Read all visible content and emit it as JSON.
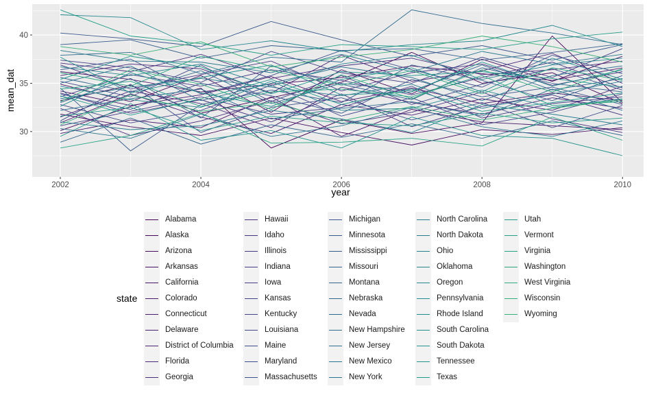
{
  "chart_data": {
    "type": "line",
    "xlabel": "year",
    "ylabel": "mean_dat",
    "xlim": [
      2001.6,
      2010.3
    ],
    "ylim": [
      25.3,
      43.2
    ],
    "x_ticks": [
      "2002",
      "2004",
      "2006",
      "2008",
      "2010"
    ],
    "y_ticks": [
      "30",
      "35",
      "40"
    ],
    "legend_title": "state",
    "legend_position": "bottom",
    "grid": true,
    "colormap": "viridis",
    "x": [
      2002,
      2003,
      2004,
      2005,
      2006,
      2007,
      2008,
      2009,
      2010
    ],
    "series": [
      {
        "name": "Alabama",
        "color": "#440154",
        "values": [
          33.2,
          34.8,
          31.9,
          33.5,
          35.1,
          38.2,
          35.0,
          36.1,
          32.9
        ]
      },
      {
        "name": "Alaska",
        "color": "#450559",
        "values": [
          30.1,
          32.6,
          34.5,
          28.3,
          31.2,
          29.8,
          30.9,
          39.9,
          33.0
        ]
      },
      {
        "name": "Arizona",
        "color": "#460a5d",
        "values": [
          34.9,
          33.1,
          35.8,
          32.0,
          36.4,
          33.9,
          37.5,
          35.2,
          37.8
        ]
      },
      {
        "name": "Arkansas",
        "color": "#470e61",
        "values": [
          31.8,
          30.5,
          29.6,
          31.4,
          29.9,
          28.6,
          30.2,
          29.7,
          30.4
        ]
      },
      {
        "name": "California",
        "color": "#471365",
        "values": [
          36.2,
          35.4,
          34.1,
          34.9,
          35.6,
          36.8,
          36.0,
          35.3,
          36.6
        ]
      },
      {
        "name": "Colorado",
        "color": "#481769",
        "values": [
          29.8,
          31.2,
          30.4,
          33.6,
          29.5,
          32.3,
          31.0,
          30.6,
          30.2
        ]
      },
      {
        "name": "Connecticut",
        "color": "#481b6d",
        "values": [
          34.2,
          32.7,
          33.8,
          35.7,
          33.1,
          34.5,
          32.9,
          34.0,
          33.2
        ]
      },
      {
        "name": "Delaware",
        "color": "#481f70",
        "values": [
          30.9,
          33.9,
          31.5,
          29.8,
          32.8,
          31.7,
          33.4,
          32.2,
          34.7
        ]
      },
      {
        "name": "District of Columbia",
        "color": "#482374",
        "values": [
          35.8,
          37.0,
          36.5,
          34.0,
          37.9,
          35.2,
          36.3,
          38.1,
          35.0
        ]
      },
      {
        "name": "Florida",
        "color": "#482878",
        "values": [
          31.5,
          34.2,
          32.9,
          30.4,
          34.6,
          33.0,
          31.8,
          33.5,
          32.4
        ]
      },
      {
        "name": "Georgia",
        "color": "#472c7a",
        "values": [
          37.1,
          36.2,
          38.0,
          35.5,
          36.8,
          37.6,
          35.9,
          36.4,
          37.3
        ]
      },
      {
        "name": "Hawaii",
        "color": "#472f7d",
        "values": [
          32.4,
          29.6,
          31.1,
          33.2,
          30.8,
          32.0,
          34.1,
          31.3,
          29.9
        ]
      },
      {
        "name": "Idaho",
        "color": "#46337f",
        "values": [
          34.0,
          31.9,
          33.3,
          31.0,
          33.9,
          30.5,
          32.6,
          33.8,
          31.7
        ]
      },
      {
        "name": "Illinois",
        "color": "#463781",
        "values": [
          36.9,
          34.4,
          35.9,
          37.3,
          34.2,
          36.1,
          37.0,
          34.8,
          36.2
        ]
      },
      {
        "name": "Indiana",
        "color": "#453b84",
        "values": [
          33.6,
          35.9,
          34.7,
          36.4,
          35.3,
          33.8,
          35.6,
          37.2,
          34.5
        ]
      },
      {
        "name": "Iowa",
        "color": "#443e85",
        "values": [
          30.6,
          32.1,
          33.6,
          31.8,
          32.5,
          34.7,
          31.4,
          32.9,
          33.6
        ]
      },
      {
        "name": "Kansas",
        "color": "#424186",
        "values": [
          37.4,
          36.6,
          35.1,
          38.3,
          36.1,
          35.0,
          37.7,
          35.6,
          38.6
        ]
      },
      {
        "name": "Kentucky",
        "color": "#414587",
        "values": [
          32.8,
          30.9,
          32.2,
          34.8,
          31.6,
          33.5,
          30.7,
          32.0,
          33.9
        ]
      },
      {
        "name": "Louisiana",
        "color": "#3f4889",
        "values": [
          35.2,
          33.6,
          36.9,
          33.1,
          35.8,
          32.8,
          34.9,
          36.5,
          34.3
        ]
      },
      {
        "name": "Maine",
        "color": "#3e4c8a",
        "values": [
          31.1,
          34.9,
          29.9,
          32.5,
          33.5,
          31.2,
          33.0,
          30.4,
          32.7
        ]
      },
      {
        "name": "Maryland",
        "color": "#3c4f8a",
        "values": [
          36.4,
          37.5,
          33.9,
          35.8,
          38.4,
          36.4,
          34.6,
          37.9,
          36.0
        ]
      },
      {
        "name": "Massachusetts",
        "color": "#3a538b",
        "values": [
          33.9,
          32.3,
          35.0,
          33.7,
          31.9,
          35.4,
          33.6,
          34.6,
          32.8
        ]
      },
      {
        "name": "Michigan",
        "color": "#38568b",
        "values": [
          40.2,
          39.6,
          38.8,
          41.4,
          39.5,
          37.8,
          38.9,
          37.4,
          39.0
        ]
      },
      {
        "name": "Minnesota",
        "color": "#365a8c",
        "values": [
          34.5,
          28.0,
          32.8,
          34.3,
          33.0,
          36.9,
          35.3,
          33.2,
          35.8
        ]
      },
      {
        "name": "Mississippi",
        "color": "#355d8c",
        "values": [
          39.0,
          39.5,
          37.6,
          38.9,
          38.4,
          38.6,
          37.4,
          38.2,
          39.1
        ]
      },
      {
        "name": "Missouri",
        "color": "#33608d",
        "values": [
          33.0,
          35.5,
          31.4,
          36.8,
          34.9,
          33.3,
          36.6,
          35.0,
          34.1
        ]
      },
      {
        "name": "Montana",
        "color": "#31648d",
        "values": [
          28.9,
          31.4,
          28.7,
          30.7,
          29.4,
          30.8,
          29.3,
          31.1,
          29.6
        ]
      },
      {
        "name": "Nebraska",
        "color": "#2f678d",
        "values": [
          35.6,
          34.1,
          36.3,
          32.9,
          35.0,
          34.2,
          36.9,
          34.3,
          35.5
        ]
      },
      {
        "name": "Nevada",
        "color": "#2e6a8d",
        "values": [
          37.9,
          38.2,
          36.0,
          37.7,
          37.2,
          42.6,
          41.2,
          40.2,
          39.0
        ]
      },
      {
        "name": "New Hampshire",
        "color": "#2c6d8e",
        "values": [
          32.2,
          33.4,
          34.4,
          31.3,
          32.4,
          33.1,
          31.6,
          34.4,
          32.2
        ]
      },
      {
        "name": "New Jersey",
        "color": "#2b718e",
        "values": [
          35.0,
          36.8,
          33.2,
          35.0,
          36.7,
          35.6,
          33.2,
          35.8,
          36.8
        ]
      },
      {
        "name": "New Mexico",
        "color": "#29748e",
        "values": [
          30.3,
          29.3,
          31.8,
          29.5,
          30.6,
          32.5,
          30.5,
          29.5,
          31.1
        ]
      },
      {
        "name": "New York",
        "color": "#28778e",
        "values": [
          38.4,
          37.3,
          37.2,
          36.1,
          38.0,
          36.2,
          38.3,
          37.0,
          38.0
        ]
      },
      {
        "name": "North Carolina",
        "color": "#267a8e",
        "values": [
          33.4,
          34.6,
          35.5,
          34.6,
          33.7,
          34.9,
          32.4,
          33.9,
          35.2
        ]
      },
      {
        "name": "North Dakota",
        "color": "#257d8e",
        "values": [
          31.0,
          30.2,
          30.6,
          32.2,
          31.3,
          29.9,
          32.8,
          31.8,
          30.7
        ]
      },
      {
        "name": "Ohio",
        "color": "#24808e",
        "values": [
          36.7,
          35.8,
          37.0,
          34.7,
          37.0,
          37.9,
          35.4,
          36.9,
          37.6
        ]
      },
      {
        "name": "Oklahoma",
        "color": "#23848e",
        "values": [
          34.7,
          33.3,
          32.5,
          35.2,
          32.2,
          32.4,
          34.3,
          32.5,
          33.4
        ]
      },
      {
        "name": "Oregon",
        "color": "#21878d",
        "values": [
          42.1,
          41.8,
          38.5,
          39.4,
          38.3,
          39.0,
          39.4,
          41.0,
          38.8
        ]
      },
      {
        "name": "Pennsylvania",
        "color": "#208a8d",
        "values": [
          32.6,
          36.1,
          34.0,
          32.6,
          35.4,
          36.6,
          34.1,
          37.6,
          35.4
        ]
      },
      {
        "name": "Rhode Island",
        "color": "#1f8d8c",
        "values": [
          37.7,
          34.0,
          35.6,
          36.9,
          33.8,
          34.1,
          37.2,
          34.7,
          36.4
        ]
      },
      {
        "name": "South Carolina",
        "color": "#1f918c",
        "values": [
          29.5,
          32.9,
          29.1,
          30.1,
          28.3,
          31.5,
          29.6,
          29.3,
          27.5
        ]
      },
      {
        "name": "South Dakota",
        "color": "#1e948b",
        "values": [
          35.4,
          37.8,
          36.7,
          33.9,
          36.2,
          35.8,
          36.2,
          35.5,
          34.6
        ]
      },
      {
        "name": "Tennessee",
        "color": "#1f978a",
        "values": [
          33.7,
          31.7,
          33.4,
          35.4,
          32.8,
          34.4,
          32.1,
          33.0,
          34.0
        ]
      },
      {
        "name": "Texas",
        "color": "#209a88",
        "values": [
          31.6,
          32.5,
          30.1,
          31.6,
          30.9,
          30.6,
          31.9,
          30.9,
          31.4
        ]
      },
      {
        "name": "Utah",
        "color": "#219d87",
        "values": [
          42.6,
          39.9,
          39.1,
          37.9,
          39.0,
          38.8,
          38.5,
          39.6,
          40.3
        ]
      },
      {
        "name": "Vermont",
        "color": "#23a085",
        "values": [
          34.4,
          35.2,
          32.6,
          34.1,
          34.4,
          33.6,
          35.8,
          32.7,
          33.1
        ]
      },
      {
        "name": "Virginia",
        "color": "#26a383",
        "values": [
          28.3,
          29.6,
          31.9,
          28.8,
          28.9,
          29.3,
          28.5,
          31.5,
          29.1
        ]
      },
      {
        "name": "Washington",
        "color": "#29a680",
        "values": [
          36.1,
          34.7,
          37.8,
          36.3,
          34.8,
          36.3,
          33.9,
          36.6,
          35.3
        ]
      },
      {
        "name": "West Virginia",
        "color": "#2ca97e",
        "values": [
          33.1,
          36.4,
          34.9,
          32.3,
          35.9,
          33.4,
          36.4,
          34.1,
          36.5
        ]
      },
      {
        "name": "Wisconsin",
        "color": "#31ac7a",
        "values": [
          30.7,
          33.8,
          32.1,
          33.0,
          31.1,
          32.6,
          31.2,
          32.4,
          33.3
        ]
      },
      {
        "name": "Wyoming",
        "color": "#36af77",
        "values": [
          38.8,
          37.9,
          39.3,
          36.7,
          37.7,
          38.5,
          39.9,
          38.8,
          37.2
        ]
      }
    ],
    "legend_extra": [
      {
        "name": "Alabama",
        "color": "#440154"
      },
      {
        "name": "Alaska",
        "color": "#450559"
      }
    ]
  }
}
